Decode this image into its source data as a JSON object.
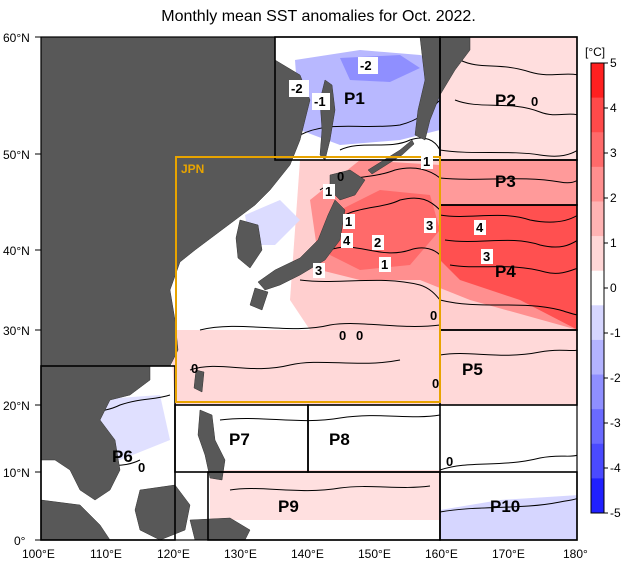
{
  "title": "Monthly mean SST anomalies for Oct. 2022.",
  "colorbar": {
    "unit": "[°C]",
    "ticks": [
      "5",
      "4",
      "3",
      "2",
      "1",
      "0",
      "-1",
      "-2",
      "-3",
      "-4",
      "-5"
    ],
    "colors": [
      "#ff2020",
      "#ff4a4a",
      "#ff6a6a",
      "#ff8f8f",
      "#ffb3b3",
      "#ffd6d6",
      "#ffffff",
      "#d6d6ff",
      "#b3b3ff",
      "#8f8fff",
      "#6a6aff",
      "#4a4aff",
      "#2020ff"
    ]
  },
  "axes": {
    "lat_labels": [
      "60°N",
      "50°N",
      "40°N",
      "30°N",
      "20°N",
      "10°N",
      "0°"
    ],
    "lon_labels": [
      "100°E",
      "110°E",
      "120°E",
      "130°E",
      "140°E",
      "150°E",
      "160°E",
      "170°E",
      "180°"
    ]
  },
  "regions": {
    "jpn": "JPN",
    "p1": "P1",
    "p2": "P2",
    "p3": "P3",
    "p4": "P4",
    "p5": "P5",
    "p6": "P6",
    "p7": "P7",
    "p8": "P8",
    "p9": "P9",
    "p10": "P10"
  },
  "contour_labels": [
    "-2",
    "-2",
    "-1",
    "1",
    "1",
    "1",
    "3",
    "4",
    "4",
    "2",
    "1",
    "3",
    "0",
    "0",
    "0",
    "0",
    "0",
    "0",
    "3",
    "0",
    "0",
    "0"
  ],
  "colors": {
    "land": "#585858",
    "jpn_box": "#e8a400",
    "frame": "#000000"
  }
}
